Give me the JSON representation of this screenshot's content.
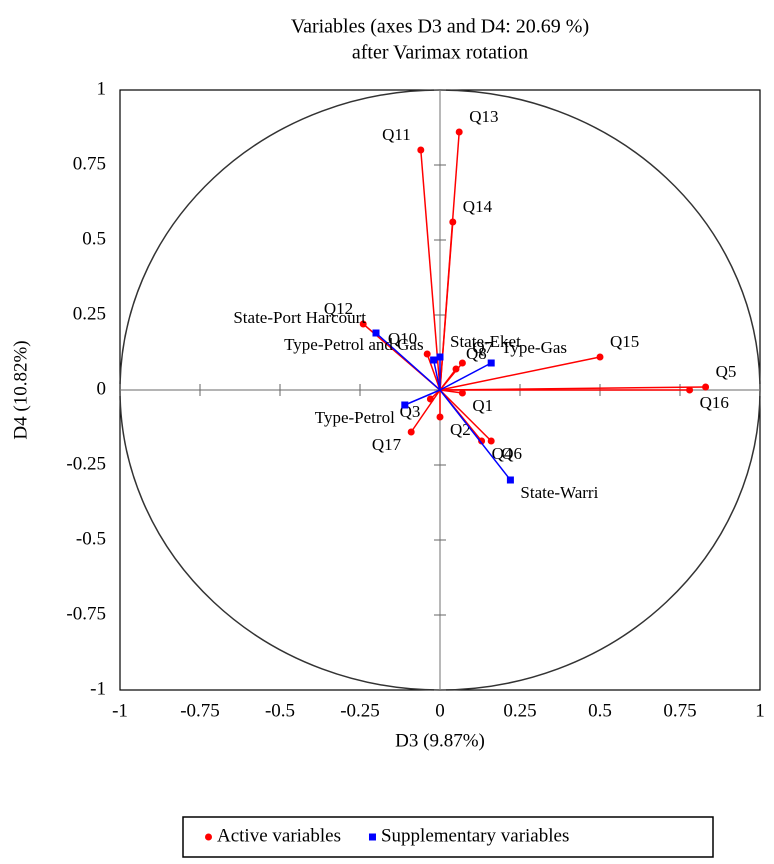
{
  "chart_data": {
    "type": "vector",
    "title": "Variables (axes D3 and D4: 20.69 %)",
    "subtitle": "after Varimax rotation",
    "x_label": "D3 (9.87%)",
    "y_label": "D4 (10.82%)",
    "xlim": [
      -1,
      1
    ],
    "ylim": [
      -1,
      1
    ],
    "xticks": [
      -1,
      -0.75,
      -0.5,
      -0.25,
      0,
      0.25,
      0.5,
      0.75,
      1
    ],
    "yticks": [
      -1,
      -0.75,
      -0.5,
      -0.25,
      0,
      0.25,
      0.5,
      0.75,
      1
    ],
    "unit_circle": true,
    "series": [
      {
        "name": "Active variables",
        "color": "#ff0000",
        "marker": "circle",
        "labels": [
          "Q11",
          "Q13",
          "Q14",
          "Q15",
          "Q5",
          "Q16",
          "Q12",
          "Q10",
          "Q7",
          "Q8",
          "Q1",
          "Q3",
          "Q17",
          "Q2",
          "Q6",
          "Q4"
        ],
        "x": [
          -0.06,
          0.06,
          0.04,
          0.5,
          0.83,
          0.78,
          -0.24,
          -0.04,
          0.07,
          0.05,
          0.07,
          -0.03,
          -0.09,
          0.0,
          0.16,
          0.13
        ],
        "values": [
          0.8,
          0.86,
          0.56,
          0.11,
          0.01,
          0.0,
          0.22,
          0.12,
          0.09,
          0.07,
          -0.01,
          -0.03,
          -0.14,
          -0.09,
          -0.17,
          -0.17
        ]
      },
      {
        "name": "Supplementary variables",
        "color": "#0000ff",
        "marker": "square",
        "labels": [
          "State-Port Harcourt",
          "Type-Petrol and Gas",
          "State-Eket",
          "Type-Gas",
          "Type-Petrol",
          "State-Warri"
        ],
        "x": [
          -0.2,
          -0.02,
          0.0,
          0.16,
          -0.11,
          0.22
        ],
        "values": [
          0.19,
          0.1,
          0.11,
          0.09,
          -0.05,
          -0.3
        ]
      }
    ]
  }
}
